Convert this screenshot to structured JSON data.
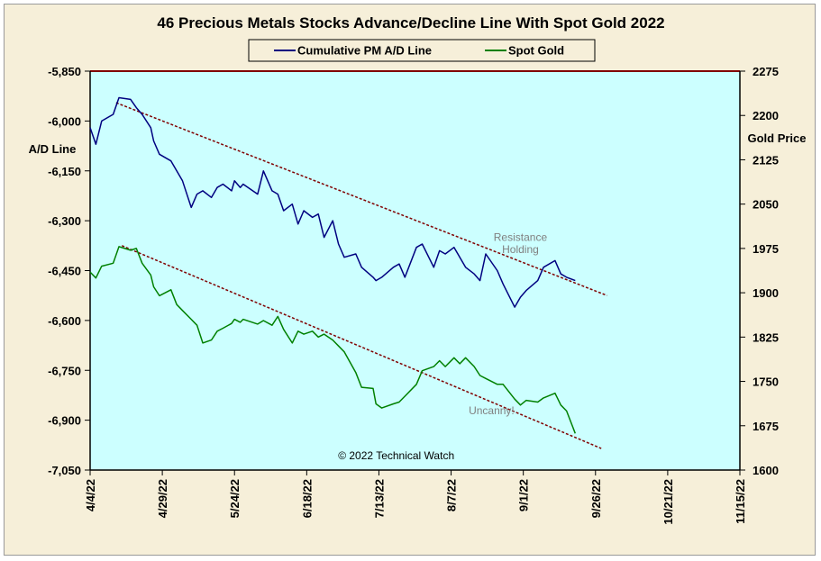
{
  "chart_data": {
    "type": "line",
    "title": "46 Precious Metals Stocks Advance/Decline Line With Spot Gold 2022",
    "y_left_label": "A/D Line",
    "y_right_label": "Gold Price",
    "y_left_ticks": [
      "-5,850",
      "-6,000",
      "-6,150",
      "-6,300",
      "-6,450",
      "-6,600",
      "-6,750",
      "-6,900",
      "-7,050"
    ],
    "y_right_ticks": [
      "2275",
      "2200",
      "2125",
      "2050",
      "1975",
      "1900",
      "1825",
      "1750",
      "1675",
      "1600"
    ],
    "y_left_range": [
      -7050,
      -5850
    ],
    "y_right_range": [
      1600,
      2275
    ],
    "x_tick_labels": [
      "4/4/22",
      "4/29/22",
      "5/24/22",
      "6/18/22",
      "7/13/22",
      "8/7/22",
      "9/1/22",
      "9/26/22",
      "10/21/22",
      "11/15/22"
    ],
    "x_range": [
      "2022-04-04",
      "2022-11-15"
    ],
    "legend_position": "top-center",
    "grid": false,
    "colors": {
      "plot_bg": "#ccffff",
      "ad_line": "#000080",
      "gold_line": "#008000",
      "trend": "#800000",
      "annotation": "#808080"
    },
    "series": [
      {
        "name": "Cumulative PM A/D Line",
        "axis": "left",
        "x": [
          "2022-04-04",
          "2022-04-06",
          "2022-04-08",
          "2022-04-12",
          "2022-04-14",
          "2022-04-18",
          "2022-04-20",
          "2022-04-22",
          "2022-04-25",
          "2022-04-26",
          "2022-04-28",
          "2022-05-02",
          "2022-05-04",
          "2022-05-06",
          "2022-05-09",
          "2022-05-11",
          "2022-05-13",
          "2022-05-16",
          "2022-05-18",
          "2022-05-20",
          "2022-05-23",
          "2022-05-24",
          "2022-05-26",
          "2022-05-27",
          "2022-06-01",
          "2022-06-03",
          "2022-06-06",
          "2022-06-08",
          "2022-06-10",
          "2022-06-13",
          "2022-06-15",
          "2022-06-17",
          "2022-06-20",
          "2022-06-22",
          "2022-06-24",
          "2022-06-27",
          "2022-06-29",
          "2022-07-01",
          "2022-07-05",
          "2022-07-07",
          "2022-07-11",
          "2022-07-12",
          "2022-07-14",
          "2022-07-18",
          "2022-07-20",
          "2022-07-22",
          "2022-07-26",
          "2022-07-28",
          "2022-08-01",
          "2022-08-03",
          "2022-08-05",
          "2022-08-08",
          "2022-08-10",
          "2022-08-12",
          "2022-08-15",
          "2022-08-17",
          "2022-08-19",
          "2022-08-23",
          "2022-08-25",
          "2022-08-29",
          "2022-08-31",
          "2022-09-02",
          "2022-09-06",
          "2022-09-08",
          "2022-09-12",
          "2022-09-14",
          "2022-09-16",
          "2022-09-19"
        ],
        "values": [
          -6020,
          -6070,
          -6000,
          -5980,
          -5930,
          -5935,
          -5960,
          -5980,
          -6020,
          -6060,
          -6100,
          -6120,
          -6150,
          -6180,
          -6260,
          -6220,
          -6210,
          -6230,
          -6200,
          -6190,
          -6210,
          -6180,
          -6200,
          -6190,
          -6220,
          -6150,
          -6210,
          -6220,
          -6270,
          -6250,
          -6310,
          -6270,
          -6290,
          -6280,
          -6350,
          -6300,
          -6370,
          -6410,
          -6400,
          -6440,
          -6470,
          -6480,
          -6470,
          -6440,
          -6430,
          -6470,
          -6380,
          -6370,
          -6440,
          -6390,
          -6400,
          -6380,
          -6410,
          -6440,
          -6460,
          -6480,
          -6400,
          -6450,
          -6490,
          -6560,
          -6530,
          -6510,
          -6480,
          -6440,
          -6420,
          -6460,
          -6470,
          -6480
        ]
      },
      {
        "name": "Spot Gold",
        "axis": "right",
        "x": [
          "2022-04-04",
          "2022-04-06",
          "2022-04-08",
          "2022-04-12",
          "2022-04-14",
          "2022-04-18",
          "2022-04-20",
          "2022-04-22",
          "2022-04-25",
          "2022-04-26",
          "2022-04-28",
          "2022-05-02",
          "2022-05-04",
          "2022-05-06",
          "2022-05-09",
          "2022-05-11",
          "2022-05-13",
          "2022-05-16",
          "2022-05-18",
          "2022-05-20",
          "2022-05-23",
          "2022-05-24",
          "2022-05-26",
          "2022-05-27",
          "2022-06-01",
          "2022-06-03",
          "2022-06-06",
          "2022-06-08",
          "2022-06-10",
          "2022-06-13",
          "2022-06-15",
          "2022-06-17",
          "2022-06-20",
          "2022-06-22",
          "2022-06-24",
          "2022-06-27",
          "2022-06-29",
          "2022-07-01",
          "2022-07-05",
          "2022-07-07",
          "2022-07-11",
          "2022-07-12",
          "2022-07-14",
          "2022-07-18",
          "2022-07-20",
          "2022-07-22",
          "2022-07-26",
          "2022-07-28",
          "2022-08-01",
          "2022-08-03",
          "2022-08-05",
          "2022-08-08",
          "2022-08-10",
          "2022-08-12",
          "2022-08-15",
          "2022-08-17",
          "2022-08-19",
          "2022-08-23",
          "2022-08-25",
          "2022-08-29",
          "2022-08-31",
          "2022-09-02",
          "2022-09-06",
          "2022-09-08",
          "2022-09-12",
          "2022-09-14",
          "2022-09-16",
          "2022-09-19"
        ],
        "values": [
          1935,
          1925,
          1945,
          1950,
          1978,
          1972,
          1975,
          1950,
          1930,
          1910,
          1895,
          1905,
          1880,
          1870,
          1855,
          1845,
          1815,
          1820,
          1835,
          1840,
          1848,
          1855,
          1850,
          1855,
          1847,
          1853,
          1845,
          1860,
          1838,
          1815,
          1835,
          1830,
          1835,
          1825,
          1830,
          1820,
          1810,
          1800,
          1765,
          1740,
          1738,
          1712,
          1705,
          1712,
          1715,
          1725,
          1745,
          1768,
          1775,
          1785,
          1775,
          1790,
          1780,
          1790,
          1775,
          1760,
          1755,
          1745,
          1745,
          1720,
          1710,
          1718,
          1715,
          1722,
          1730,
          1710,
          1700,
          1662
        ]
      }
    ],
    "trendlines": [
      {
        "axis": "left",
        "from": [
          "2022-04-13",
          -5945
        ],
        "to": [
          "2022-09-30",
          -6525
        ]
      },
      {
        "axis": "left",
        "from": [
          "2022-04-15",
          -6375
        ],
        "to": [
          "2022-09-28",
          -6985
        ]
      }
    ],
    "annotations": [
      {
        "text": "Resistance",
        "x": "2022-08-31",
        "y": -6360
      },
      {
        "text": "Holding",
        "x": "2022-08-31",
        "y": -6397
      },
      {
        "text": "Uncanny!",
        "x": "2022-08-21",
        "y": -6882
      },
      {
        "text": "© 2022 Technical Watch",
        "x": "2022-07-19",
        "y": -7017
      }
    ]
  }
}
